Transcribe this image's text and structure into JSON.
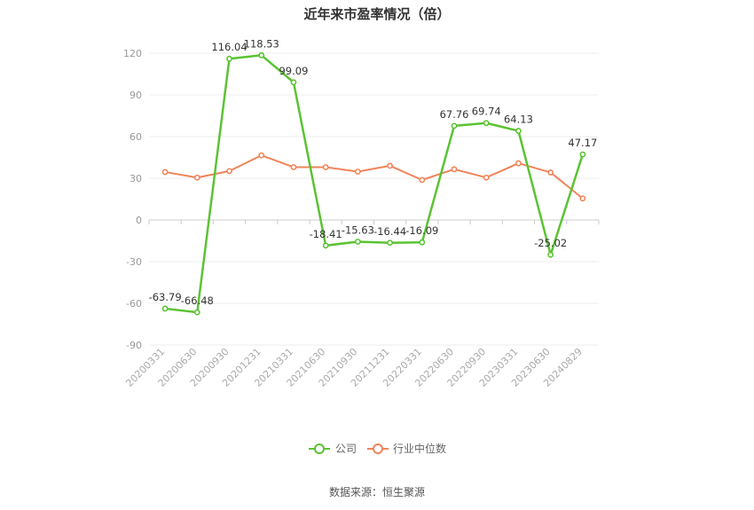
{
  "chart_data": {
    "type": "line",
    "title": "近年来市盈率情况（倍）",
    "categories": [
      "20200331",
      "20200630",
      "20200930",
      "20201231",
      "20210331",
      "20210630",
      "20210930",
      "20211231",
      "20220331",
      "20220630",
      "20220930",
      "20230331",
      "20230630",
      "20240829"
    ],
    "ylim": [
      -90,
      120
    ],
    "yticks": [
      120,
      90,
      60,
      30,
      0,
      -30,
      -60,
      -90
    ],
    "grid": true,
    "legend_position": "bottom-center",
    "series": [
      {
        "name": "公司",
        "color": "#5bc333",
        "values": [
          -63.79,
          -66.48,
          116.04,
          118.53,
          99.09,
          -18.41,
          -15.63,
          -16.44,
          -16.09,
          67.76,
          69.74,
          64.13,
          -25.02,
          47.17
        ],
        "labels": [
          "-63.79",
          "-66.48",
          "116.04",
          "118.53",
          "99.09",
          "-18.41",
          "-15.63",
          "-16.44",
          "-16.09",
          "67.76",
          "69.74",
          "64.13",
          "-25.02",
          "47.17"
        ]
      },
      {
        "name": "行业中位数",
        "color": "#f0845a",
        "values": [
          34.5,
          30.5,
          35.2,
          46.5,
          38.0,
          38.0,
          34.8,
          39.0,
          28.8,
          36.5,
          30.5,
          40.8,
          34.2,
          15.5
        ]
      }
    ],
    "source": "数据来源：恒生聚源"
  }
}
